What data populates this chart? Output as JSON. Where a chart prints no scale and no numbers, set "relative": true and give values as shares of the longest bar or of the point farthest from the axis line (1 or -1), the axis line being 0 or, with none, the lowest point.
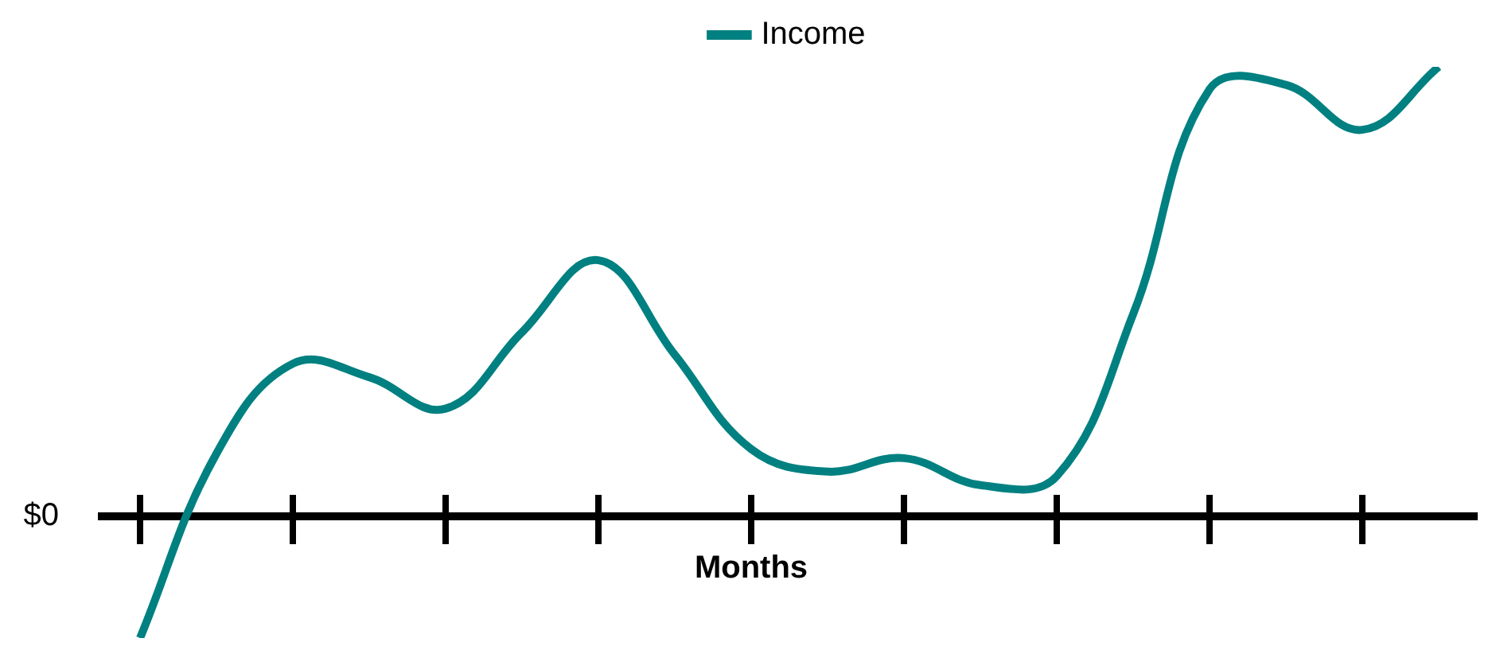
{
  "chart_data": {
    "type": "line",
    "xlabel": "Months",
    "relative": true,
    "legend": "top",
    "categories": [
      null,
      null,
      null,
      null,
      null,
      null,
      null,
      null,
      null,
      null,
      null,
      null,
      null,
      null,
      null,
      null,
      null,
      null
    ],
    "series": [
      {
        "name": "Income",
        "color": "#008080",
        "values": [
          -0.27,
          0.14,
          0.34,
          0.31,
          0.24,
          0.41,
          0.57,
          0.36,
          0.15,
          0.1,
          0.13,
          0.07,
          0.09,
          0.45,
          0.95,
          0.96,
          0.86,
          1
        ]
      }
    ],
    "annotations": [
      "$0"
    ],
    "marker": "none",
    "line_style": "solid"
  }
}
